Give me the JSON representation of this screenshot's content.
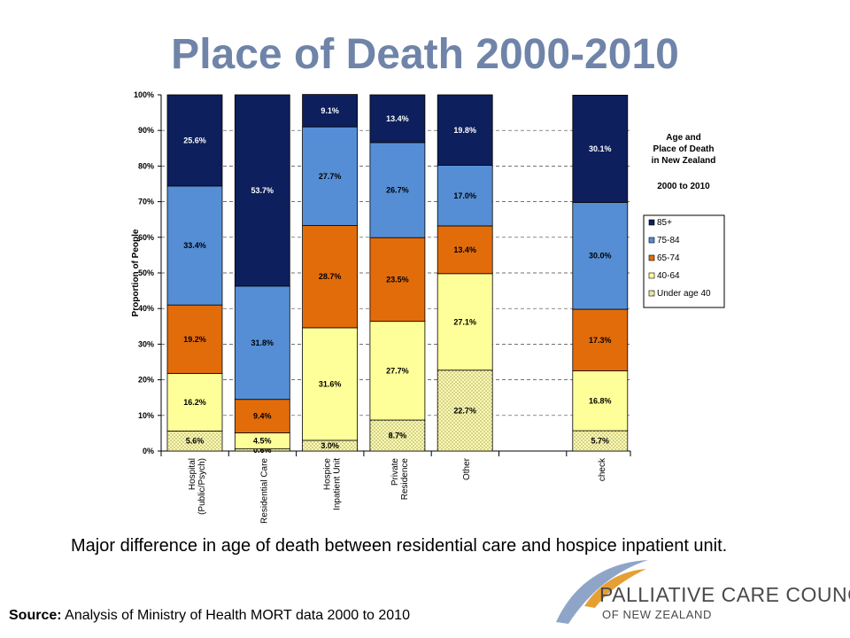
{
  "slide": {
    "title": "Place of Death 2000-2010",
    "caption": "Major difference in age of death between residential care and hospice inpatient unit.",
    "source_label": "Source:",
    "source_text": " Analysis of Ministry of Health MORT data 2000 to 2010",
    "logo_line1": "PALLIATIVE CARE COUNCIL",
    "logo_line2": "OF NEW ZEALAND"
  },
  "chart_data": {
    "type": "bar",
    "stacked": true,
    "ylabel": "Proportion of People",
    "ylim": [
      0,
      100
    ],
    "yticks": [
      "0%",
      "10%",
      "20%",
      "30%",
      "40%",
      "50%",
      "60%",
      "70%",
      "80%",
      "90%",
      "100%"
    ],
    "grid": "dashed horizontal",
    "legend_position": "right",
    "legend_title_lines": [
      "Age and",
      "Place of Death",
      "in New Zealand"
    ],
    "legend_subtitle": "2000 to 2010",
    "categories": [
      [
        "Hospital",
        "(Public/Psych)"
      ],
      [
        "Residential Care"
      ],
      [
        "Hospice",
        "Inpatient Unit"
      ],
      [
        "Private",
        "Residence"
      ],
      [
        "Other"
      ],
      [],
      [
        "check"
      ]
    ],
    "series": [
      {
        "name": "Under age 40",
        "color": "#fffbb0",
        "pattern": true,
        "values": [
          5.6,
          0.6,
          3.0,
          8.7,
          22.7,
          null,
          5.7
        ],
        "labels": [
          "5.6%",
          "0.6%",
          "3.0%",
          "8.7%",
          "22.7%",
          "",
          "5.7%"
        ]
      },
      {
        "name": "40-64",
        "color": "#ffff99",
        "values": [
          16.2,
          4.5,
          31.6,
          27.7,
          27.1,
          null,
          16.8
        ],
        "labels": [
          "16.2%",
          "4.5%",
          "31.6%",
          "27.7%",
          "27.1%",
          "",
          "16.8%"
        ]
      },
      {
        "name": "65-74",
        "color": "#e36c0a",
        "values": [
          19.2,
          9.4,
          28.7,
          23.5,
          13.4,
          null,
          17.3
        ],
        "labels": [
          "19.2%",
          "9.4%",
          "28.7%",
          "23.5%",
          "13.4%",
          "",
          "17.3%"
        ]
      },
      {
        "name": "75-84",
        "color": "#558ed5",
        "values": [
          33.4,
          31.8,
          27.7,
          26.7,
          17.0,
          null,
          30.0
        ],
        "labels": [
          "33.4%",
          "31.8%",
          "27.7%",
          "26.7%",
          "17.0%",
          "",
          "30.0%"
        ]
      },
      {
        "name": "85+",
        "color": "#0d1f5c",
        "values": [
          25.6,
          53.7,
          9.1,
          13.4,
          19.8,
          null,
          30.1
        ],
        "labels": [
          "25.6%",
          "53.7%",
          "9.1%",
          "13.4%",
          "19.8%",
          "",
          "30.1%"
        ]
      }
    ],
    "legend_order": [
      "85+",
      "75-84",
      "65-74",
      "40-64",
      "Under age 40"
    ]
  }
}
